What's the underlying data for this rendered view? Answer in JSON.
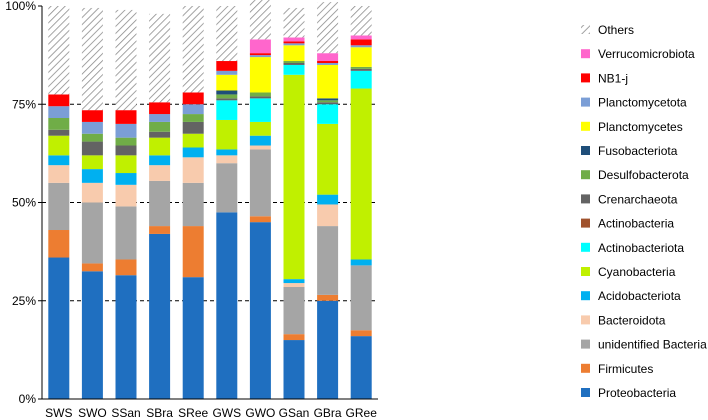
{
  "chart_data": {
    "type": "bar",
    "stacked": true,
    "categories": [
      "SWS",
      "SWO",
      "SSan",
      "SBra",
      "SRee",
      "GWS",
      "GWO",
      "GSan",
      "GBra",
      "GRee"
    ],
    "ylim": [
      0,
      100
    ],
    "yticks": [
      "0%",
      "25%",
      "50%",
      "75%",
      "100%"
    ],
    "ytick_values": [
      0,
      25,
      50,
      75,
      100
    ],
    "gridlines": "dashed at 25%, 50%, 75%",
    "legend_position": "right",
    "series": [
      {
        "name": "Proteobacteria",
        "color": "#1f6fc0",
        "values": [
          36.0,
          32.5,
          31.5,
          42.0,
          31.0,
          47.5,
          45.0,
          15.0,
          25.0,
          16.0
        ]
      },
      {
        "name": "Firmicutes",
        "color": "#ed7d31",
        "values": [
          7.0,
          2.0,
          4.0,
          2.0,
          13.0,
          0.0,
          1.5,
          1.5,
          1.5,
          1.5
        ]
      },
      {
        "name": "unidentified Bacteria",
        "color": "#a5a5a5",
        "values": [
          12.0,
          15.5,
          13.5,
          11.5,
          11.0,
          12.5,
          17.0,
          12.0,
          17.5,
          16.5
        ]
      },
      {
        "name": "Bacteroidota",
        "color": "#f8cbad",
        "values": [
          4.5,
          5.0,
          5.5,
          4.0,
          6.5,
          2.0,
          1.0,
          1.0,
          5.5,
          0.0
        ]
      },
      {
        "name": "Acidobacteriota",
        "color": "#00b0f0",
        "values": [
          2.5,
          3.5,
          3.0,
          2.5,
          2.5,
          1.5,
          2.5,
          1.0,
          2.5,
          1.5
        ]
      },
      {
        "name": "Cyanobacteria",
        "color": "#c0f000",
        "values": [
          5.0,
          3.5,
          4.5,
          4.5,
          3.5,
          7.5,
          3.5,
          52.0,
          18.0,
          43.5
        ]
      },
      {
        "name": "Actinobacteriota",
        "color": "#00ffff",
        "values": [
          0.0,
          0.0,
          0.0,
          0.0,
          0.0,
          5.0,
          6.0,
          2.5,
          5.0,
          4.5
        ]
      },
      {
        "name": "Actinobacteria",
        "color": "#a0522d",
        "values": [
          0.0,
          0.0,
          0.0,
          0.0,
          0.0,
          0.0,
          0.0,
          0.0,
          0.0,
          0.0
        ]
      },
      {
        "name": "Crenarchaeota",
        "color": "#636363",
        "values": [
          1.5,
          3.5,
          2.5,
          1.5,
          3.0,
          0.5,
          0.5,
          0.5,
          0.5,
          0.5
        ]
      },
      {
        "name": "Desulfobacterota",
        "color": "#70ad47",
        "values": [
          3.0,
          2.0,
          2.0,
          2.5,
          2.0,
          1.0,
          1.0,
          0.5,
          0.5,
          0.5
        ]
      },
      {
        "name": "Fusobacteriota",
        "color": "#1f4e79",
        "values": [
          0.0,
          0.0,
          0.0,
          0.0,
          0.0,
          1.0,
          0.0,
          0.0,
          0.5,
          0.0
        ]
      },
      {
        "name": "Planctomycetes",
        "color": "#ffff00",
        "values": [
          0.0,
          0.0,
          0.0,
          0.0,
          0.0,
          4.0,
          9.0,
          4.0,
          8.5,
          5.0
        ]
      },
      {
        "name": "Planctomycetota",
        "color": "#7b9ed6",
        "values": [
          3.0,
          3.0,
          3.5,
          2.0,
          2.5,
          1.0,
          0.5,
          0.5,
          0.5,
          0.5
        ]
      },
      {
        "name": "NB1-j",
        "color": "#ff0000",
        "values": [
          3.0,
          3.0,
          3.5,
          3.0,
          3.0,
          2.5,
          0.5,
          0.5,
          0.5,
          1.5
        ]
      },
      {
        "name": "Verrucomicrobiota",
        "color": "#ff66cc",
        "values": [
          0.0,
          0.0,
          0.0,
          0.0,
          0.0,
          0.0,
          3.5,
          1.0,
          2.0,
          1.0
        ]
      },
      {
        "name": "Others",
        "color": "hatched",
        "values": [
          22.5,
          26.0,
          25.5,
          22.5,
          22.0,
          14.0,
          10.0,
          7.5,
          13.0,
          7.5
        ]
      }
    ]
  }
}
